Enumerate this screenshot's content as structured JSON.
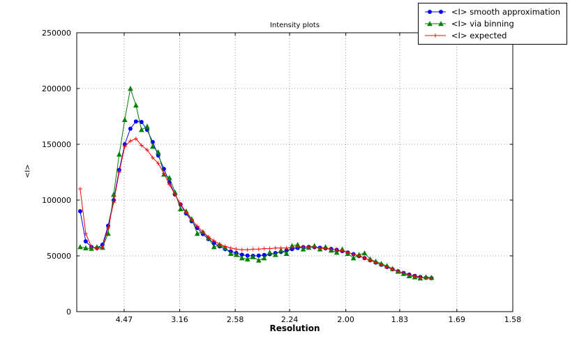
{
  "chart_data": {
    "type": "line",
    "title": "Intensity plots",
    "xlabel": "Resolution",
    "ylabel": "<I>",
    "grid": "dotted",
    "legend_position": "upper right outside axes",
    "style": {
      "grid_color": "#777777",
      "axis_color": "#000000",
      "background": "#ffffff"
    },
    "x_axis": {
      "note": "resolution axis, linear in 1/d^2, labels in Angstrom d-spacing",
      "lim_invd2": [
        0.0073,
        0.4006
      ],
      "ticks": [
        {
          "label": "4.47",
          "invd2": 0.05006
        },
        {
          "label": "3.16",
          "invd2": 0.10015
        },
        {
          "label": "2.58",
          "invd2": 0.15024
        },
        {
          "label": "2.24",
          "invd2": 0.1993
        },
        {
          "label": "2.00",
          "invd2": 0.25
        },
        {
          "label": "1.83",
          "invd2": 0.29861
        },
        {
          "label": "1.69",
          "invd2": 0.35013
        },
        {
          "label": "1.58",
          "invd2": 0.40057
        }
      ]
    },
    "y_axis": {
      "lim": [
        0,
        250000
      ],
      "ticks": [
        0,
        50000,
        100000,
        150000,
        200000,
        250000
      ]
    },
    "x_invd2": [
      0.0104,
      0.0154,
      0.0205,
      0.0255,
      0.0305,
      0.0356,
      0.0406,
      0.0456,
      0.0506,
      0.0557,
      0.0607,
      0.0657,
      0.0708,
      0.0758,
      0.0808,
      0.0859,
      0.0909,
      0.0959,
      0.1009,
      0.106,
      0.111,
      0.116,
      0.1211,
      0.1261,
      0.1311,
      0.1362,
      0.1412,
      0.1462,
      0.1512,
      0.1563,
      0.1613,
      0.1663,
      0.1714,
      0.1764,
      0.1814,
      0.1865,
      0.1915,
      0.1965,
      0.2015,
      0.2066,
      0.2116,
      0.2166,
      0.2217,
      0.2267,
      0.2317,
      0.2368,
      0.2418,
      0.2468,
      0.2518,
      0.2569,
      0.2619,
      0.2669,
      0.272,
      0.277,
      0.282,
      0.2871,
      0.2921,
      0.2971,
      0.3021,
      0.3072,
      0.3122,
      0.3172,
      0.3223,
      0.3273
    ],
    "series": [
      {
        "name": "<I> smooth approximation",
        "color": "#0000ff",
        "marker": "circle",
        "values": [
          90000,
          63000,
          58000,
          57000,
          60000,
          77000,
          100000,
          127000,
          150000,
          164000,
          170500,
          170000,
          163000,
          152000,
          140000,
          128000,
          116000,
          105000,
          96000,
          88000,
          81000,
          75000,
          69500,
          65000,
          61500,
          58500,
          56000,
          54000,
          52500,
          51000,
          50200,
          50000,
          50200,
          50800,
          51500,
          52500,
          53500,
          54800,
          56000,
          57000,
          57800,
          58000,
          57800,
          57300,
          56800,
          56200,
          55400,
          54300,
          53000,
          51500,
          49800,
          48000,
          46000,
          44000,
          42000,
          40000,
          38000,
          36200,
          34600,
          33200,
          32000,
          31000,
          30400,
          30000
        ]
      },
      {
        "name": "<I> via binning",
        "color": "#007f00",
        "marker": "triangle",
        "values": [
          58000,
          57000,
          56500,
          58000,
          57500,
          70000,
          105000,
          141000,
          172000,
          200000,
          185000,
          163000,
          166000,
          148000,
          143000,
          123000,
          120000,
          107000,
          92000,
          90000,
          83000,
          70000,
          71500,
          66000,
          58000,
          60000,
          57000,
          52000,
          51000,
          48000,
          47000,
          49000,
          46000,
          48000,
          53000,
          51000,
          55000,
          52000,
          59000,
          60000,
          56000,
          57500,
          59000,
          56000,
          58000,
          55000,
          53000,
          56000,
          52000,
          48000,
          51000,
          52500,
          47000,
          45000,
          43000,
          41000,
          38500,
          36000,
          34000,
          32000,
          31000,
          30000,
          31000,
          30500
        ]
      },
      {
        "name": "<I> expected",
        "color": "#ff0000",
        "marker": "plus",
        "values": [
          110000,
          70000,
          58000,
          56500,
          57500,
          75000,
          98000,
          125000,
          148000,
          153000,
          155000,
          149000,
          145000,
          138000,
          133000,
          124000,
          114000,
          105000,
          96500,
          89000,
          82500,
          76500,
          71500,
          67000,
          63500,
          60500,
          58500,
          57000,
          56000,
          55500,
          55500,
          56000,
          56000,
          56500,
          56500,
          57000,
          57000,
          57000,
          57500,
          58000,
          58000,
          58000,
          57500,
          57000,
          56500,
          56000,
          55500,
          54500,
          53000,
          51500,
          50000,
          48000,
          46000,
          44000,
          42000,
          40000,
          38000,
          36200,
          34500,
          33000,
          31800,
          30800,
          30200,
          30000
        ]
      }
    ]
  }
}
